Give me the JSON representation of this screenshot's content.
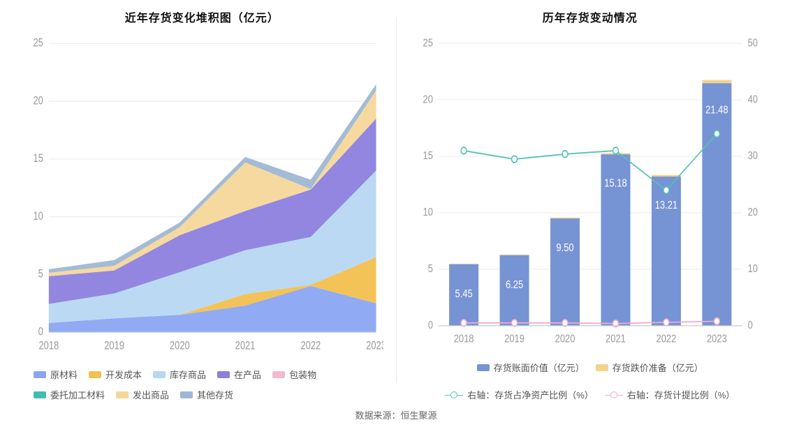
{
  "source_label": "数据来源：恒生聚源",
  "left_chart": {
    "type": "area-stacked",
    "title": "近年存货变化堆积图（亿元）",
    "categories": [
      "2018",
      "2019",
      "2020",
      "2021",
      "2022",
      "2023"
    ],
    "ylim": [
      0,
      25
    ],
    "ytick_step": 5,
    "axis_fontsize": 13,
    "axis_color": "#999999",
    "grid_color": "#eeeeee",
    "background_color": "#ffffff",
    "series": [
      {
        "name": "原材料",
        "color": "#8aa6f2",
        "values": [
          0.8,
          1.2,
          1.5,
          2.3,
          4.0,
          2.5
        ]
      },
      {
        "name": "开发成本",
        "color": "#f2c04e",
        "values": [
          0.0,
          0.0,
          0.0,
          1.0,
          0.1,
          4.0
        ]
      },
      {
        "name": "库存商品",
        "color": "#b8d7f2",
        "values": [
          1.65,
          2.15,
          3.7,
          3.8,
          4.15,
          7.5
        ]
      },
      {
        "name": "在产品",
        "color": "#8d7fde",
        "values": [
          2.4,
          2.0,
          3.2,
          3.4,
          4.1,
          4.5
        ]
      },
      {
        "name": "包装物",
        "color": "#f2b9cf",
        "values": [
          0.0,
          0.0,
          0.0,
          0.0,
          0.0,
          0.0
        ]
      },
      {
        "name": "委托加工材料",
        "color": "#3fbdb3",
        "values": [
          0.0,
          0.0,
          0.0,
          0.0,
          0.0,
          0.0
        ]
      },
      {
        "name": "发出商品",
        "color": "#f6d79a",
        "values": [
          0.3,
          0.4,
          0.7,
          4.2,
          0.05,
          2.45
        ]
      },
      {
        "name": "其他存货",
        "color": "#9fb7d4",
        "values": [
          0.3,
          0.5,
          0.4,
          0.48,
          0.81,
          0.53
        ]
      }
    ],
    "legend_fontsize": 13,
    "legend_color": "#555555"
  },
  "right_chart": {
    "type": "bar+line-dual-axis",
    "title": "历年存货变动情况",
    "categories": [
      "2018",
      "2019",
      "2020",
      "2021",
      "2022",
      "2023"
    ],
    "y_left": {
      "lim": [
        0,
        25
      ],
      "tick_step": 5,
      "color": "#999999"
    },
    "y_right": {
      "lim": [
        0,
        50
      ],
      "tick_step": 10,
      "color": "#999999"
    },
    "axis_fontsize": 13,
    "grid_color": "#eeeeee",
    "background_color": "#ffffff",
    "bar_width": 0.58,
    "bars": [
      {
        "name": "存货账面价值（亿元）",
        "color": "#7693d4",
        "axis": "left",
        "values": [
          5.45,
          6.25,
          9.5,
          15.18,
          13.21,
          21.48
        ],
        "labels": [
          "5.45",
          "6.25",
          "9.50",
          "15.18",
          "13.21",
          "21.48"
        ],
        "label_color": "#333333",
        "label_fontsize": 13
      },
      {
        "name": "存货跌价准备（亿元）",
        "color": "#f4d38b",
        "axis": "left",
        "values": [
          0.05,
          0.06,
          0.08,
          0.1,
          0.14,
          0.28
        ]
      }
    ],
    "lines": [
      {
        "name": "右轴：存货占净资产比例（%）",
        "color": "#55c2b4",
        "axis": "right",
        "values": [
          31.0,
          29.5,
          30.4,
          31.0,
          24.0,
          34.0
        ],
        "marker": "circle-open",
        "line_width": 1.5
      },
      {
        "name": "右轴：存货计提比例（%）",
        "color": "#f0aacd",
        "axis": "right",
        "values": [
          0.5,
          0.5,
          0.5,
          0.4,
          0.6,
          0.8
        ],
        "marker": "circle-open",
        "line_width": 1.5
      }
    ],
    "legend_fontsize": 13,
    "legend_color": "#888888"
  }
}
